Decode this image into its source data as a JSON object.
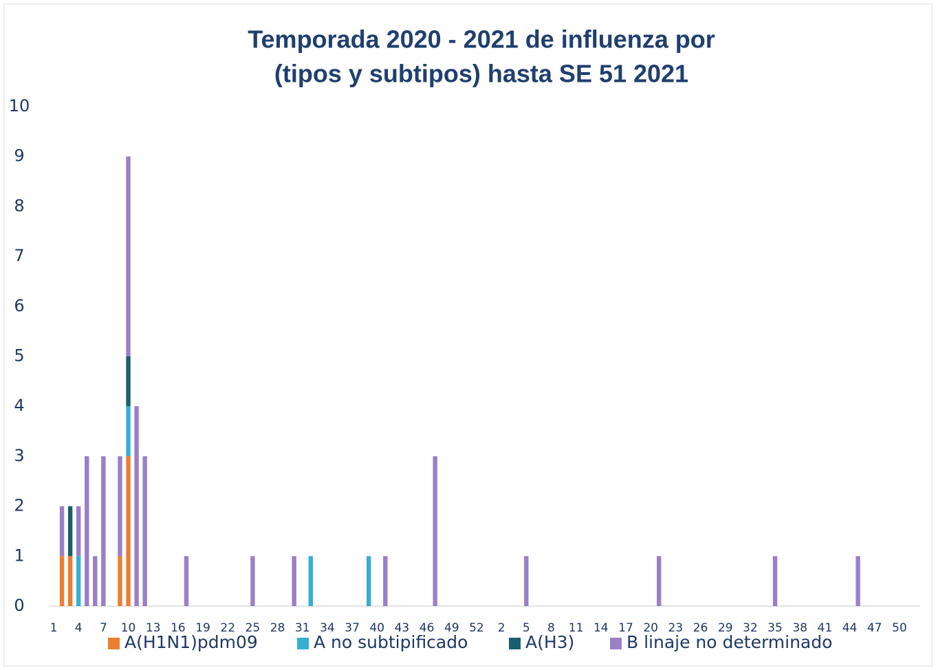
{
  "chart_data": {
    "type": "stacked_bar",
    "title": [
      "Temporada 2020 - 2021 de influenza por",
      "(tipos y subtipos) hasta SE 51 2021"
    ],
    "categories": [
      1,
      null,
      null,
      4,
      null,
      null,
      7,
      null,
      null,
      10,
      null,
      null,
      13,
      null,
      null,
      16,
      null,
      null,
      19,
      null,
      null,
      22,
      null,
      null,
      25,
      null,
      null,
      28,
      null,
      null,
      31,
      null,
      null,
      34,
      null,
      null,
      37,
      null,
      null,
      40,
      null,
      null,
      43,
      null,
      null,
      46,
      null,
      null,
      49,
      null,
      null,
      52,
      null,
      null,
      2,
      null,
      null,
      5,
      null,
      null,
      8,
      null,
      null,
      11,
      null,
      null,
      14,
      null,
      null,
      17,
      null,
      null,
      20,
      null,
      null,
      23,
      null,
      null,
      26,
      null,
      null,
      29,
      null,
      null,
      32,
      null,
      null,
      35,
      null,
      null,
      38,
      null,
      null,
      41,
      null,
      null,
      44,
      null,
      null,
      47,
      null,
      null,
      50,
      null,
      null
    ],
    "series": [
      {
        "name": "A(H1N1)pdm09",
        "color": "#ed7d31",
        "values": [
          null,
          1,
          1,
          null,
          null,
          null,
          null,
          null,
          1,
          3,
          null,
          null,
          null,
          null,
          null,
          null,
          null,
          null,
          null,
          null,
          null,
          null,
          null,
          null,
          null,
          null,
          null,
          null,
          null,
          null,
          null,
          null,
          null,
          null,
          null,
          null,
          null,
          null,
          null,
          null,
          null,
          null,
          null,
          null,
          null,
          null,
          null,
          null,
          null,
          null,
          null,
          null,
          null,
          null,
          null,
          null,
          null,
          null,
          null,
          null,
          null,
          null,
          null,
          null,
          null,
          null,
          null,
          null,
          null,
          null,
          null,
          null,
          null,
          null,
          null,
          null,
          null,
          null,
          null,
          null,
          null,
          null,
          null,
          null,
          null,
          null,
          null,
          null,
          null,
          null,
          null,
          null,
          null,
          null,
          null,
          null,
          null,
          null,
          null,
          null,
          null,
          null,
          null,
          null,
          null
        ]
      },
      {
        "name": "A no subtipificado",
        "color": "#36aed4",
        "values": [
          null,
          null,
          null,
          1,
          null,
          null,
          null,
          null,
          null,
          1,
          null,
          null,
          null,
          null,
          null,
          null,
          null,
          null,
          null,
          null,
          null,
          null,
          null,
          null,
          null,
          null,
          null,
          null,
          null,
          null,
          null,
          1,
          null,
          null,
          null,
          null,
          null,
          null,
          1,
          null,
          null,
          null,
          null,
          null,
          null,
          null,
          null,
          null,
          null,
          null,
          null,
          null,
          null,
          null,
          null,
          null,
          null,
          null,
          null,
          null,
          null,
          null,
          null,
          null,
          null,
          null,
          null,
          null,
          null,
          null,
          null,
          null,
          null,
          null,
          null,
          null,
          null,
          null,
          null,
          null,
          null,
          null,
          null,
          null,
          null,
          null,
          null,
          null,
          null,
          null,
          null,
          null,
          null,
          null,
          null,
          null,
          null,
          null,
          null,
          null,
          null,
          null,
          null,
          null,
          null
        ]
      },
      {
        "name": "A(H3)",
        "color": "#1a5f6e",
        "values": [
          null,
          null,
          1,
          null,
          null,
          null,
          null,
          null,
          null,
          1,
          null,
          null,
          null,
          null,
          null,
          null,
          null,
          null,
          null,
          null,
          null,
          null,
          null,
          null,
          null,
          null,
          null,
          null,
          null,
          null,
          null,
          null,
          null,
          null,
          null,
          null,
          null,
          null,
          null,
          null,
          null,
          null,
          null,
          null,
          null,
          null,
          null,
          null,
          null,
          null,
          null,
          null,
          null,
          null,
          null,
          null,
          null,
          null,
          null,
          null,
          null,
          null,
          null,
          null,
          null,
          null,
          null,
          null,
          null,
          null,
          null,
          null,
          null,
          null,
          null,
          null,
          null,
          null,
          null,
          null,
          null,
          null,
          null,
          null,
          null,
          null,
          null,
          null,
          null,
          null,
          null,
          null,
          null,
          null,
          null,
          null,
          null,
          null,
          null,
          null,
          null,
          null,
          null,
          null,
          null
        ]
      },
      {
        "name": "B linaje no determinado",
        "color": "#9a7fc6",
        "values": [
          null,
          1,
          null,
          1,
          3,
          1,
          3,
          null,
          2,
          4,
          4,
          3,
          null,
          null,
          null,
          null,
          1,
          null,
          null,
          null,
          null,
          null,
          null,
          null,
          1,
          null,
          null,
          null,
          null,
          1,
          null,
          null,
          null,
          null,
          null,
          null,
          null,
          null,
          null,
          null,
          1,
          null,
          null,
          null,
          null,
          null,
          3,
          null,
          null,
          null,
          null,
          null,
          null,
          null,
          null,
          null,
          null,
          1,
          null,
          null,
          null,
          null,
          null,
          null,
          null,
          null,
          null,
          null,
          null,
          null,
          null,
          null,
          null,
          1,
          null,
          null,
          null,
          null,
          null,
          null,
          null,
          null,
          null,
          null,
          null,
          null,
          null,
          1,
          null,
          null,
          null,
          null,
          null,
          null,
          null,
          null,
          null,
          1,
          null,
          null,
          null,
          null,
          null,
          null,
          null
        ]
      }
    ],
    "ylim": [
      0,
      10
    ],
    "yticks": [
      0,
      1,
      2,
      3,
      4,
      5,
      6,
      7,
      8,
      9,
      10
    ],
    "grid": false,
    "legend": "bottom"
  }
}
